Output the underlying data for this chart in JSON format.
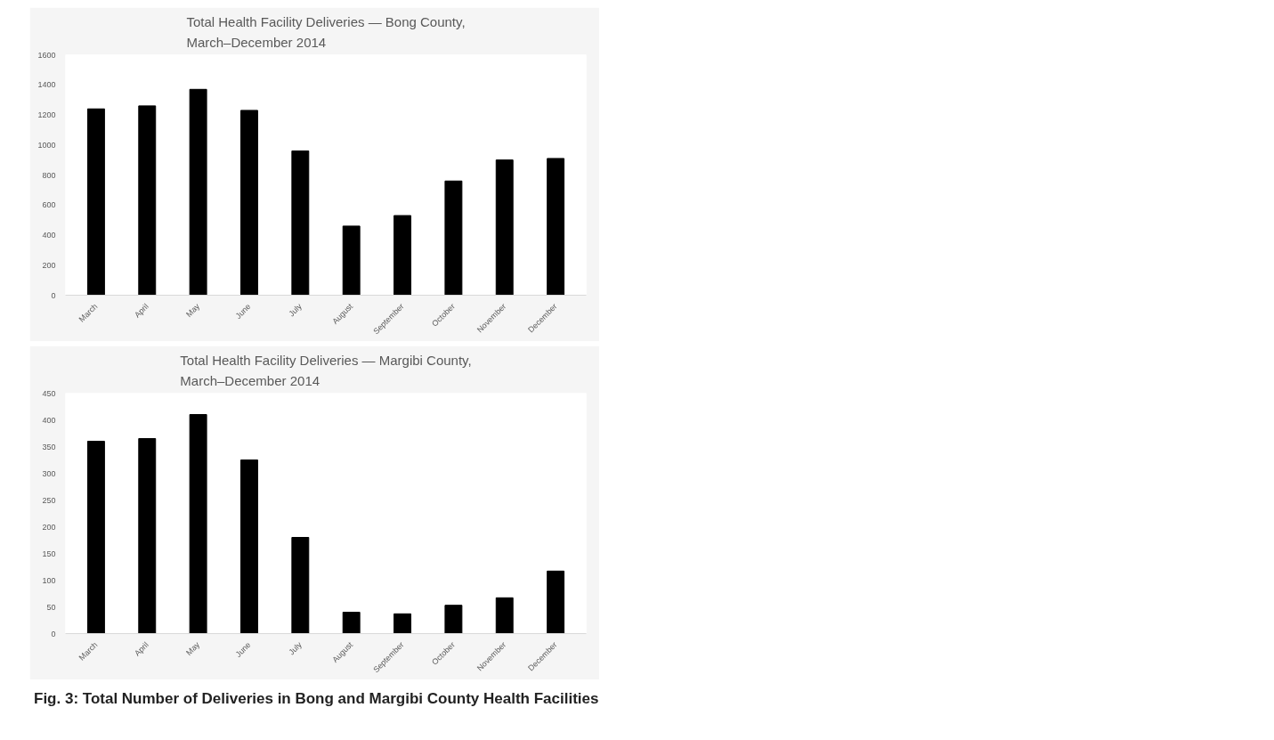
{
  "chart_data": [
    {
      "type": "bar",
      "title": "Total Health Facility Deliveries — Bong County,\nMarch–December 2014",
      "categories": [
        "March",
        "April",
        "May",
        "June",
        "July",
        "August",
        "September",
        "October",
        "November",
        "December"
      ],
      "values": [
        1240,
        1260,
        1370,
        1230,
        960,
        460,
        530,
        760,
        900,
        910
      ],
      "color": "#000000",
      "ylim": [
        0,
        1600
      ],
      "yticks": [
        0,
        200,
        400,
        600,
        800,
        1000,
        1200,
        1400,
        1600
      ],
      "grid": false
    },
    {
      "type": "bar",
      "title": "Total Health Facility Deliveries — Margibi County,\nMarch–December 2014",
      "categories": [
        "March",
        "April",
        "May",
        "June",
        "July",
        "August",
        "September",
        "October",
        "November",
        "December"
      ],
      "values": [
        360,
        365,
        410,
        325,
        180,
        40,
        37,
        53,
        67,
        117
      ],
      "color": "#000000",
      "ylim": [
        0,
        450
      ],
      "yticks": [
        0,
        50,
        100,
        150,
        200,
        250,
        300,
        350,
        400,
        450
      ],
      "grid": false,
      "annotations": [
        "Fig. 3: Total Number of Deliveries in Bong and Margibi County Health Facilities"
      ]
    }
  ]
}
